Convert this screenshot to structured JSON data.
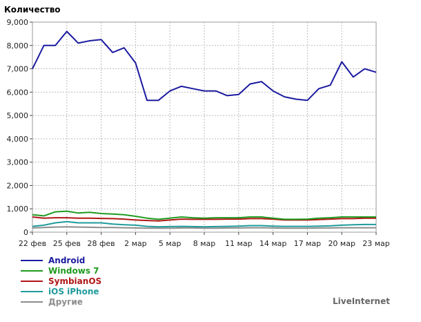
{
  "chart_data": {
    "type": "line",
    "ylabel": "Количество",
    "ylim": [
      0,
      9000
    ],
    "y_ticks": [
      "0",
      "1,000",
      "2,000",
      "3,000",
      "4,000",
      "5,000",
      "6,000",
      "7,000",
      "8,000",
      "9,000"
    ],
    "x_ticks": [
      "22 фев",
      "25 фев",
      "28 фев",
      "2 мар",
      "5 мар",
      "8 мар",
      "11 мар",
      "14 мар",
      "17 мар",
      "20 мар",
      "23 мар"
    ],
    "grid": true,
    "legend_position": "bottom-left",
    "points_count": 31,
    "series": [
      {
        "name": "Android",
        "color": "#1a1aa0",
        "values": [
          7000,
          8000,
          8000,
          8600,
          8100,
          8200,
          8250,
          7700,
          7900,
          7250,
          5650,
          5650,
          6050,
          6250,
          6150,
          6050,
          6050,
          5850,
          5900,
          6350,
          6450,
          6050,
          5800,
          5700,
          5650,
          6150,
          6300,
          7300,
          6650,
          7000,
          6850
        ]
      },
      {
        "name": "Windows 7",
        "color": "#1f9a1f",
        "values": [
          750,
          700,
          870,
          900,
          820,
          850,
          800,
          780,
          750,
          680,
          600,
          550,
          600,
          650,
          620,
          600,
          620,
          620,
          620,
          650,
          650,
          600,
          550,
          550,
          560,
          600,
          620,
          650,
          650,
          650,
          650
        ]
      },
      {
        "name": "SymbianOS",
        "color": "#b01515",
        "values": [
          650,
          600,
          620,
          620,
          600,
          600,
          590,
          580,
          560,
          520,
          500,
          480,
          520,
          560,
          550,
          550,
          550,
          560,
          560,
          580,
          580,
          560,
          520,
          520,
          520,
          540,
          560,
          580,
          580,
          600,
          600
        ]
      },
      {
        "name": "iOS iPhone",
        "color": "#1f9a9a",
        "values": [
          250,
          300,
          400,
          450,
          400,
          400,
          400,
          350,
          320,
          300,
          250,
          230,
          240,
          250,
          240,
          230,
          240,
          250,
          260,
          280,
          280,
          260,
          250,
          250,
          250,
          260,
          270,
          300,
          320,
          330,
          330
        ]
      },
      {
        "name": "Другие",
        "color": "#8c8c8c",
        "values": [
          180,
          200,
          220,
          230,
          220,
          210,
          200,
          200,
          190,
          180,
          170,
          170,
          170,
          180,
          180,
          170,
          170,
          180,
          180,
          190,
          190,
          180,
          170,
          170,
          170,
          180,
          180,
          190,
          190,
          190,
          190
        ]
      }
    ]
  },
  "brand": "LiveInternet"
}
